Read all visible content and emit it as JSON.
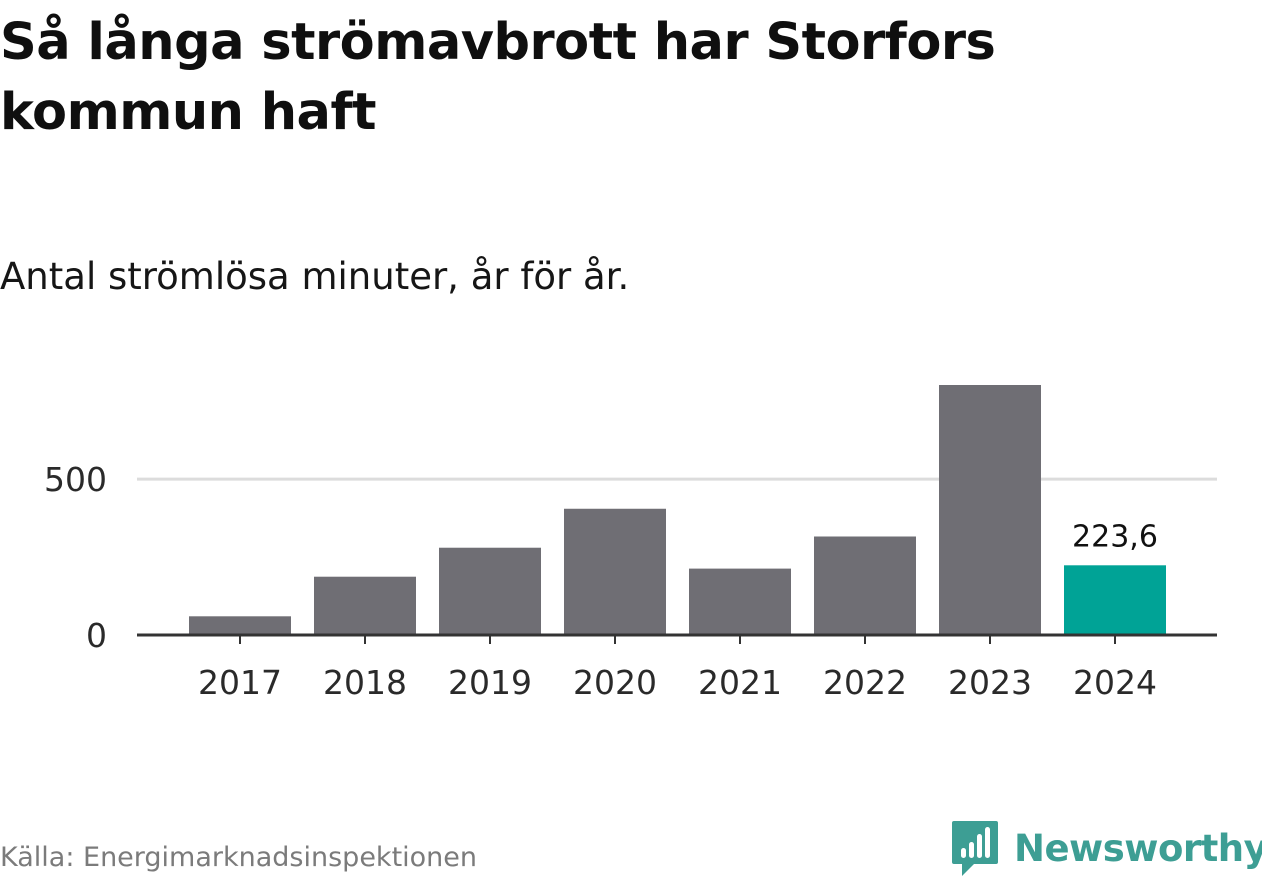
{
  "title": "Så långa strömavbrott har Storfors kommun haft",
  "subtitle": "Antal strömlösa minuter, år för år.",
  "source": "Källa: Energimarknadsinspektionen",
  "brand": {
    "name": "Newsworthy",
    "icon": "bar-chart-speech-bubble-icon",
    "color": "#3d9e94"
  },
  "colors": {
    "bar": "#6f6e74",
    "highlight": "#00a396",
    "axis": "#333333",
    "grid": "#dcdcdc",
    "tick_text": "#2a2a2a"
  },
  "chart_data": {
    "type": "bar",
    "categories": [
      "2017",
      "2018",
      "2019",
      "2020",
      "2021",
      "2022",
      "2023",
      "2024"
    ],
    "values": [
      60,
      187,
      280,
      405,
      213,
      316,
      802,
      223.6
    ],
    "highlight_index": 7,
    "data_labels": [
      {
        "index": 7,
        "text": "223,6"
      }
    ],
    "yticks": [
      0,
      500
    ],
    "ytick_labels": [
      "0",
      "500"
    ],
    "ylim": [
      0,
      802
    ],
    "grid": true
  }
}
